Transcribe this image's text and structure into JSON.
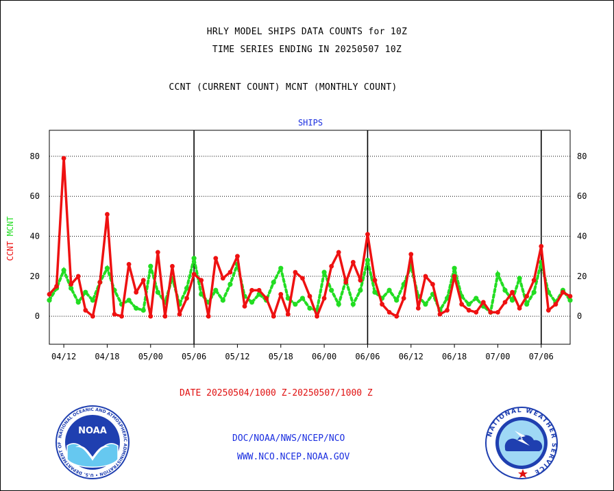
{
  "header": {
    "line1": "HRLY MODEL SHIPS DATA COUNTS for 10Z",
    "line2": "TIME SERIES ENDING IN 20250507 10Z",
    "line3": "CCNT (CURRENT COUNT) MCNT (MONTHLY COUNT)"
  },
  "footer": {
    "date_range": "DATE 20250504/1000 Z-20250507/1000 Z",
    "org": "DOC/NOAA/NWS/NCEP/NCO",
    "url": "WWW.NCO.NCEP.NOAA.GOV"
  },
  "logos": {
    "noaa_text": "NOAA",
    "noaa_ring": "NATIONAL OCEANIC AND ATMOSPHERIC ADMINISTRATION • U.S. DEPARTMENT OF COMMERCE •",
    "nws_ring": "NATIONAL WEATHER SERVICE"
  },
  "colors": {
    "ccnt": "#ee1111",
    "mcnt": "#22dd22",
    "title_blue": "#1a2ee0",
    "grid": "#000000"
  },
  "chart_data": {
    "type": "line",
    "title": "SHIPS",
    "ylabel_left": [
      {
        "text": "CCNT",
        "color": "#ee1111"
      },
      {
        "text": "MCNT",
        "color": "#22dd22"
      }
    ],
    "ylim": [
      -14,
      93
    ],
    "yticks": [
      0,
      20,
      40,
      60,
      80
    ],
    "xlim": [
      0,
      72
    ],
    "x_tick_labels": [
      {
        "x": 2,
        "label": "04/12"
      },
      {
        "x": 8,
        "label": "04/18"
      },
      {
        "x": 14,
        "label": "05/00"
      },
      {
        "x": 20,
        "label": "05/06"
      },
      {
        "x": 26,
        "label": "05/12"
      },
      {
        "x": 32,
        "label": "05/18"
      },
      {
        "x": 38,
        "label": "06/00"
      },
      {
        "x": 44,
        "label": "06/06"
      },
      {
        "x": 50,
        "label": "06/12"
      },
      {
        "x": 56,
        "label": "06/18"
      },
      {
        "x": 62,
        "label": "07/00"
      },
      {
        "x": 68,
        "label": "07/06"
      }
    ],
    "day_boundaries": [
      20,
      44,
      68
    ],
    "grid": true,
    "series": [
      {
        "name": "CCNT",
        "color": "#ee1111",
        "style": "solid",
        "values": [
          11,
          15,
          79,
          16,
          20,
          3,
          0,
          17,
          51,
          1,
          0,
          26,
          12,
          18,
          0,
          32,
          0,
          25,
          1,
          9,
          21,
          18,
          0,
          29,
          19,
          22,
          30,
          5,
          13,
          13,
          9,
          0,
          11,
          1,
          22,
          19,
          10,
          0,
          9,
          25,
          32,
          17,
          27,
          18,
          41,
          18,
          6,
          2,
          0,
          9,
          31,
          4,
          20,
          16,
          1,
          3,
          20,
          6,
          3,
          2,
          7,
          2,
          2,
          7,
          12,
          4,
          10,
          18,
          35,
          3,
          6,
          12,
          10
        ]
      },
      {
        "name": "MCNT",
        "color": "#22dd22",
        "style": "dotted",
        "values": [
          8,
          14,
          23,
          14,
          7,
          12,
          8,
          17,
          24,
          13,
          6,
          8,
          4,
          3,
          25,
          12,
          7,
          19,
          6,
          14,
          29,
          11,
          7,
          13,
          8,
          16,
          26,
          10,
          7,
          11,
          8,
          17,
          24,
          9,
          6,
          9,
          4,
          3,
          22,
          13,
          6,
          18,
          6,
          13,
          28,
          12,
          9,
          13,
          8,
          16,
          25,
          10,
          6,
          11,
          3,
          9,
          24,
          10,
          6,
          9,
          5,
          2,
          21,
          13,
          8,
          19,
          6,
          12,
          27,
          12,
          7,
          13,
          8
        ]
      }
    ]
  }
}
